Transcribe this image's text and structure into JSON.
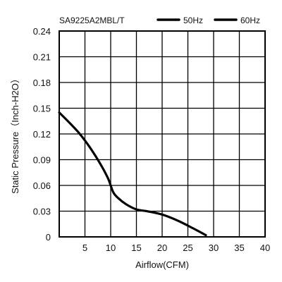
{
  "chart_data": {
    "type": "line",
    "title": "SA9225A2MBL/T",
    "xlabel": "Airflow(CFM)",
    "ylabel": "Static Pressure（Inch-H2O）",
    "xlim": [
      0,
      40
    ],
    "ylim": [
      0,
      0.24
    ],
    "x_ticks": [
      "5",
      "10",
      "15",
      "20",
      "25",
      "30",
      "35",
      "40"
    ],
    "y_ticks": [
      "0",
      "0.03",
      "0.06",
      "0.09",
      "0.12",
      "0.15",
      "0.18",
      "0.21",
      "0.24"
    ],
    "grid": true,
    "legend_position": "top-right",
    "series": [
      {
        "name": "50Hz",
        "color": "#000000",
        "x": [
          0,
          2,
          4,
          6,
          8,
          9.5,
          10.5,
          11.5,
          13,
          15,
          17,
          20,
          23,
          26,
          28.5
        ],
        "y": [
          0.145,
          0.133,
          0.12,
          0.104,
          0.085,
          0.068,
          0.052,
          0.045,
          0.038,
          0.032,
          0.03,
          0.026,
          0.019,
          0.01,
          0.002
        ]
      },
      {
        "name": "60Hz",
        "color": "#000000",
        "x": [
          0,
          2,
          4,
          6,
          8,
          9.5,
          10.5,
          11.5,
          13,
          15,
          17,
          20,
          23,
          26,
          28.5
        ],
        "y": [
          0.145,
          0.133,
          0.12,
          0.104,
          0.085,
          0.068,
          0.052,
          0.045,
          0.038,
          0.032,
          0.03,
          0.026,
          0.019,
          0.01,
          0.002
        ]
      }
    ]
  }
}
